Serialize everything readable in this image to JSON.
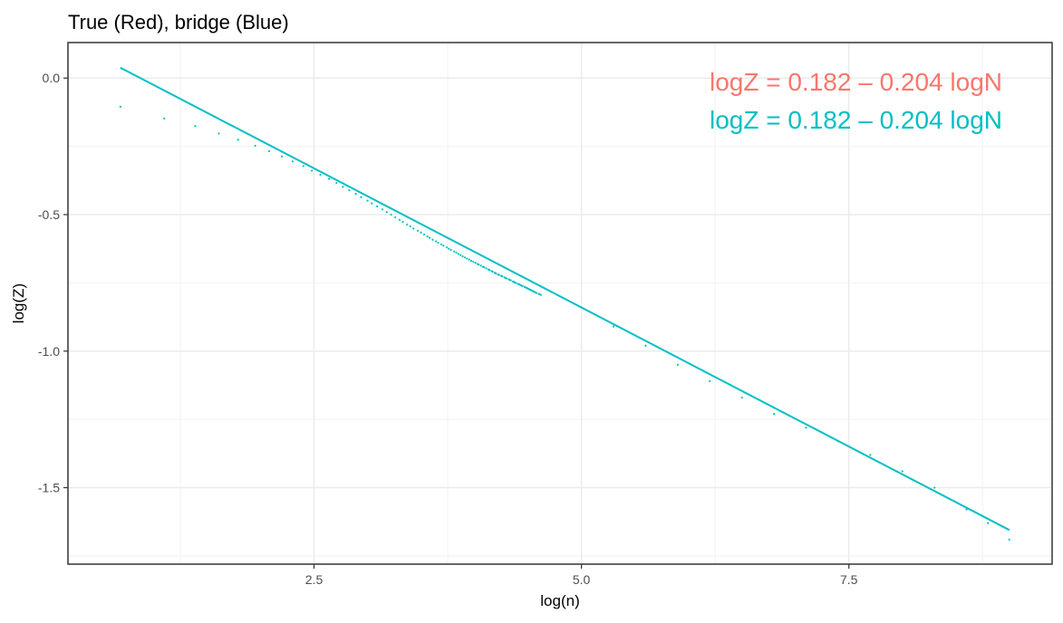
{
  "chart_data": {
    "type": "scatter",
    "title": "True (Red), bridge (Blue)",
    "xlabel": "log(n)",
    "ylabel": "log(Z)",
    "xlim": [
      0.2,
      9.4
    ],
    "ylim": [
      -1.78,
      0.13
    ],
    "x_ticks": [
      2.5,
      5.0,
      7.5
    ],
    "x_tick_labels": [
      "2.5",
      "5.0",
      "7.5"
    ],
    "y_ticks": [
      0.0,
      -0.5,
      -1.0,
      -1.5
    ],
    "y_tick_labels": [
      "0.0",
      "-0.5",
      "-1.0",
      "-1.5"
    ],
    "grid": true,
    "theme": "white background with light grey grid and black panel border",
    "annotations": [
      {
        "text": "logZ = 0.182 – 0.204 logN",
        "color": "#F8766D"
      },
      {
        "text": "logZ = 0.182 – 0.204 logN",
        "color": "#00BFC4"
      }
    ],
    "series": [
      {
        "color": "#00BFC4",
        "style": "dotted points",
        "x": [
          0.69,
          1.1,
          1.39,
          1.61,
          1.79,
          1.95,
          2.08,
          2.2,
          2.3,
          2.4,
          2.48,
          2.56,
          2.64,
          2.71,
          2.77,
          2.83,
          2.89,
          2.94,
          3.0,
          3.04,
          3.09,
          3.14,
          3.18,
          3.22,
          3.26,
          3.3,
          3.33,
          3.37,
          3.4,
          3.43,
          3.47,
          3.5,
          3.53,
          3.56,
          3.58,
          3.61,
          3.64,
          3.66,
          3.69,
          3.71,
          3.74,
          3.76,
          3.78,
          3.81,
          3.83,
          3.85,
          3.87,
          3.89,
          3.91,
          3.93,
          3.95,
          3.97,
          3.99,
          4.01,
          4.03,
          4.04,
          4.06,
          4.08,
          4.09,
          4.11,
          4.13,
          4.14,
          4.16,
          4.17,
          4.19,
          4.2,
          4.22,
          4.23,
          4.25,
          4.26,
          4.28,
          4.29,
          4.3,
          4.32,
          4.33,
          4.34,
          4.36,
          4.37,
          4.38,
          4.39,
          4.41,
          4.42,
          4.43,
          4.44,
          4.45,
          4.47,
          4.48,
          4.49,
          4.5,
          4.51,
          4.52,
          4.53,
          4.54,
          4.55,
          4.56,
          4.57,
          4.58,
          4.6,
          4.61,
          4.62,
          5.0,
          5.3,
          5.6,
          5.9,
          6.2,
          6.5,
          6.8,
          7.1,
          7.4,
          7.7,
          8.0,
          8.3,
          8.6,
          8.8,
          9.0
        ],
        "y": [
          -0.105,
          -0.148,
          -0.176,
          -0.203,
          -0.226,
          -0.248,
          -0.268,
          -0.287,
          -0.305,
          -0.322,
          -0.339,
          -0.354,
          -0.369,
          -0.384,
          -0.398,
          -0.411,
          -0.424,
          -0.436,
          -0.449,
          -0.459,
          -0.47,
          -0.481,
          -0.491,
          -0.5,
          -0.51,
          -0.519,
          -0.527,
          -0.536,
          -0.543,
          -0.551,
          -0.559,
          -0.566,
          -0.573,
          -0.58,
          -0.585,
          -0.592,
          -0.598,
          -0.603,
          -0.609,
          -0.614,
          -0.62,
          -0.625,
          -0.629,
          -0.635,
          -0.639,
          -0.644,
          -0.648,
          -0.653,
          -0.657,
          -0.661,
          -0.665,
          -0.669,
          -0.673,
          -0.677,
          -0.681,
          -0.683,
          -0.687,
          -0.691,
          -0.693,
          -0.697,
          -0.701,
          -0.703,
          -0.707,
          -0.709,
          -0.713,
          -0.715,
          -0.719,
          -0.721,
          -0.724,
          -0.726,
          -0.73,
          -0.732,
          -0.734,
          -0.737,
          -0.739,
          -0.741,
          -0.745,
          -0.747,
          -0.749,
          -0.751,
          -0.754,
          -0.756,
          -0.758,
          -0.76,
          -0.762,
          -0.765,
          -0.767,
          -0.769,
          -0.771,
          -0.773,
          -0.775,
          -0.777,
          -0.779,
          -0.781,
          -0.783,
          -0.785,
          -0.787,
          -0.79,
          -0.792,
          -0.794,
          -0.84,
          -0.91,
          -0.98,
          -1.05,
          -1.11,
          -1.17,
          -1.23,
          -1.28,
          -1.33,
          -1.38,
          -1.44,
          -1.5,
          -1.58,
          -1.63,
          -1.69
        ]
      },
      {
        "color": "#00BFC4",
        "style": "line",
        "x": [
          0.69,
          9.0
        ],
        "y": [
          0.038,
          -1.655
        ]
      }
    ]
  }
}
